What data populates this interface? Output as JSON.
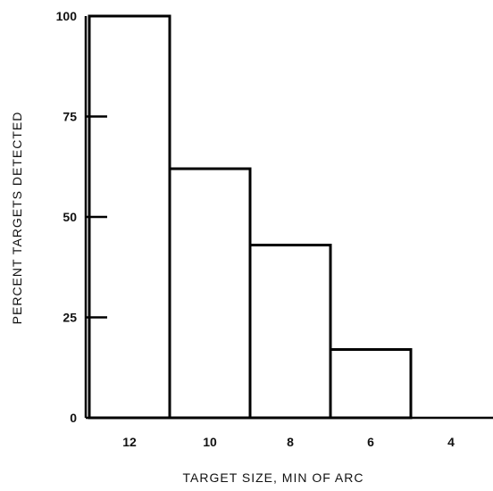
{
  "chart_data": {
    "type": "bar",
    "title": "",
    "xlabel": "TARGET SIZE, MIN OF ARC",
    "ylabel": "PERCENT TARGETS DETECTED",
    "categories": [
      "12",
      "10",
      "8",
      "6",
      "4"
    ],
    "values": [
      100,
      62,
      43,
      17,
      0
    ],
    "ylim": [
      0,
      100
    ],
    "yticks": [
      "0",
      "25",
      "50",
      "75",
      "100"
    ],
    "grid": false,
    "bar_fill": "#ffffff",
    "bar_stroke": "#000000"
  }
}
